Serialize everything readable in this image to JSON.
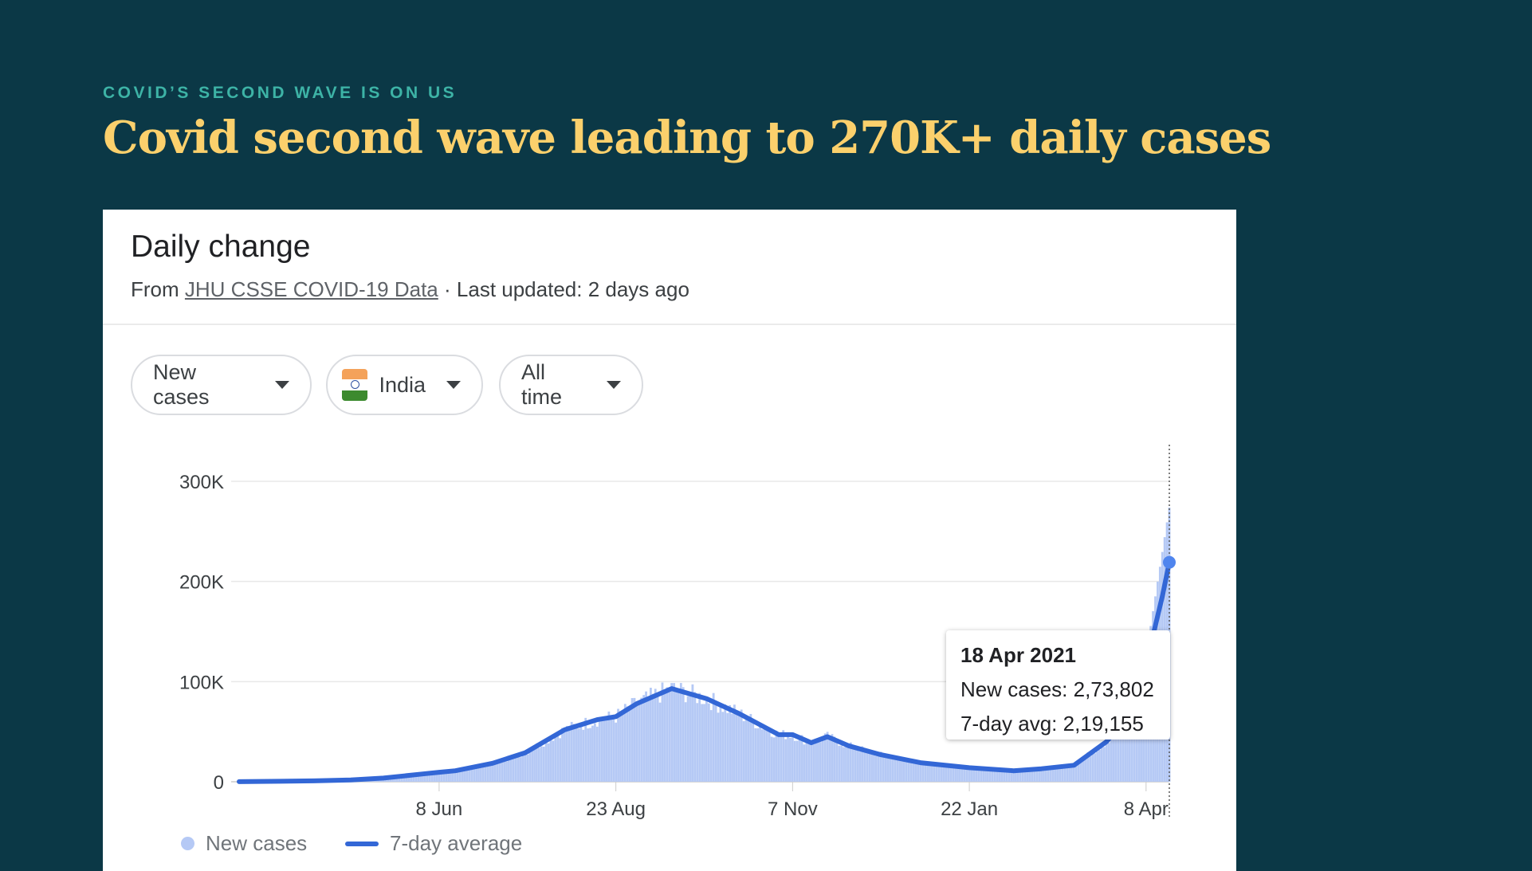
{
  "slide": {
    "kicker": "COVID’S SECOND WAVE IS ON US",
    "headline": "Covid second wave leading to 270K+ daily cases"
  },
  "card": {
    "title": "Daily change",
    "source_prefix": "From",
    "source_link": "JHU CSSE COVID-19 Data",
    "updated": "· Last updated: 2 days ago",
    "filters": [
      {
        "label": "New cases",
        "icon": "caret-down-icon"
      },
      {
        "label": "India",
        "icon": "india-flag-icon"
      },
      {
        "label": "All time",
        "icon": "caret-down-icon"
      }
    ],
    "tooltip": {
      "date": "18 Apr 2021",
      "new_cases": "New cases: 2,73,802",
      "avg": "7-day avg: 2,19,155"
    },
    "legend": {
      "new_cases": "New cases",
      "avg": "7-day average"
    }
  },
  "colors": {
    "background": "#0b3846",
    "headline": "#fbd06c",
    "kicker": "#3db3a6",
    "avg_line": "#3367d6",
    "new_cases_fill": "#b5c9f5"
  },
  "chart_data": {
    "type": "area",
    "ylim": [
      0,
      300000
    ],
    "yticks": [
      "0",
      "100K",
      "200K",
      "300K"
    ],
    "ytick_values": [
      0,
      100000,
      200000,
      300000
    ],
    "xticks": [
      "8 Jun",
      "23 Aug",
      "7 Nov",
      "22 Jan",
      "8 Apr"
    ],
    "xtick_dates": [
      "2020-06-08",
      "2020-08-23",
      "2020-11-07",
      "2021-01-22",
      "2021-04-08"
    ],
    "xlim": [
      "2020-03-14",
      "2021-04-18"
    ],
    "series": [
      {
        "name": "7-day average",
        "type": "line",
        "x": [
          "2020-03-14",
          "2020-04-01",
          "2020-04-15",
          "2020-05-01",
          "2020-05-15",
          "2020-06-01",
          "2020-06-08",
          "2020-06-15",
          "2020-07-01",
          "2020-07-15",
          "2020-08-01",
          "2020-08-15",
          "2020-08-23",
          "2020-09-01",
          "2020-09-16",
          "2020-10-01",
          "2020-10-15",
          "2020-11-01",
          "2020-11-07",
          "2020-11-15",
          "2020-11-22",
          "2020-12-01",
          "2020-12-15",
          "2021-01-01",
          "2021-01-22",
          "2021-02-10",
          "2021-02-22",
          "2021-03-08",
          "2021-03-22",
          "2021-04-01",
          "2021-04-08",
          "2021-04-15",
          "2021-04-18"
        ],
        "y": [
          100,
          500,
          900,
          1800,
          3700,
          7800,
          9500,
          11000,
          18500,
          29000,
          52000,
          62000,
          65000,
          78000,
          93000,
          83000,
          68000,
          47000,
          47000,
          39000,
          45000,
          36000,
          27000,
          19000,
          14000,
          11000,
          13000,
          16500,
          40000,
          68000,
          117000,
          185000,
          219155
        ]
      },
      {
        "name": "New cases",
        "type": "bar",
        "x": [
          "2020-03-14",
          "2020-06-08",
          "2020-08-23",
          "2020-09-16",
          "2020-11-07",
          "2021-01-05",
          "2021-02-10",
          "2021-04-08",
          "2021-04-18"
        ],
        "y": [
          100,
          9900,
          69000,
          97000,
          45000,
          23000,
          11000,
          126000,
          273802
        ]
      }
    ]
  }
}
